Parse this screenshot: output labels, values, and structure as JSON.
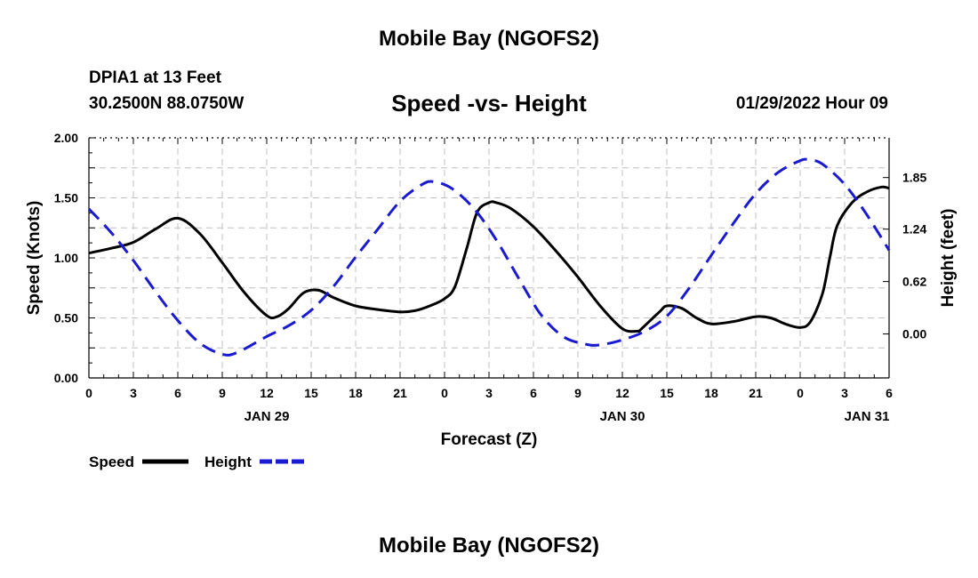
{
  "header": {
    "title": "Mobile Bay (NGOFS2)",
    "station": "DPIA1 at 13 Feet",
    "coordinates": "30.2500N  88.0750W",
    "chart_title": "Speed -vs- Height",
    "datetime": "01/29/2022 Hour 09"
  },
  "footer": {
    "title": "Mobile Bay (NGOFS2)"
  },
  "legend": {
    "speed_label": "Speed",
    "height_label": "Height",
    "speed_color": "#000000",
    "height_color": "#1a1ad0"
  },
  "chart_data": {
    "type": "line",
    "title": "Speed -vs- Height",
    "xlabel": "Forecast (Z)",
    "ylabel": "Speed (Knots)",
    "y2label": "Height (feet)",
    "xlim": [
      0,
      54
    ],
    "ylim": [
      0,
      2.0
    ],
    "y2lim": [
      -0.52,
      2.32
    ],
    "x_ticks": [
      0,
      3,
      6,
      9,
      12,
      15,
      18,
      21,
      24,
      27,
      30,
      33,
      36,
      39,
      42,
      45,
      48,
      51,
      54
    ],
    "x_tick_labels": [
      "0",
      "3",
      "6",
      "9",
      "12",
      "15",
      "18",
      "21",
      "0",
      "3",
      "6",
      "9",
      "12",
      "15",
      "18",
      "21",
      "0",
      "3",
      "6"
    ],
    "date_labels": [
      {
        "x": 12,
        "label": "JAN 29"
      },
      {
        "x": 36,
        "label": "JAN 30"
      },
      {
        "x": 52.5,
        "label": "JAN 31"
      }
    ],
    "y_ticks": [
      0.0,
      0.5,
      1.0,
      1.5,
      2.0
    ],
    "y_tick_labels": [
      "0.00",
      "0.50",
      "1.00",
      "1.50",
      "2.00"
    ],
    "y2_ticks": [
      0.0,
      0.62,
      1.24,
      1.85
    ],
    "y2_tick_labels": [
      "0.00",
      "0.62",
      "1.24",
      "1.85"
    ],
    "grid": true,
    "legend_position": "bottom-left",
    "series": [
      {
        "name": "Speed",
        "axis": "left",
        "style": "solid",
        "color": "#000000",
        "x": [
          0,
          1.5,
          3,
          4.5,
          6,
          7.5,
          9,
          10.5,
          12,
          12.7,
          13.5,
          14.5,
          15.5,
          16.5,
          18,
          19.5,
          21,
          22,
          23,
          24,
          24.7,
          25.5,
          26.2,
          27,
          27.5,
          28.5,
          30,
          31.5,
          33,
          34.5,
          36,
          37,
          37.3,
          38.5,
          39,
          40,
          41,
          42,
          43.5,
          45,
          46,
          47,
          48,
          48.7,
          49.5,
          50,
          50.5,
          51.5,
          52.5,
          53.5,
          54
        ],
        "values": [
          1.04,
          1.08,
          1.13,
          1.24,
          1.33,
          1.2,
          0.96,
          0.71,
          0.52,
          0.51,
          0.58,
          0.71,
          0.73,
          0.67,
          0.6,
          0.57,
          0.55,
          0.56,
          0.6,
          0.66,
          0.76,
          1.08,
          1.38,
          1.46,
          1.46,
          1.41,
          1.26,
          1.06,
          0.84,
          0.6,
          0.41,
          0.39,
          0.41,
          0.55,
          0.6,
          0.58,
          0.5,
          0.45,
          0.47,
          0.51,
          0.5,
          0.45,
          0.42,
          0.47,
          0.7,
          1.0,
          1.27,
          1.46,
          1.55,
          1.59,
          1.58
        ]
      },
      {
        "name": "Height",
        "axis": "right",
        "style": "dashed",
        "color": "#1a1ad0",
        "x": [
          0,
          1.5,
          3,
          4.5,
          6,
          7.5,
          9,
          10,
          12,
          13.5,
          15,
          16.5,
          18,
          19.5,
          21,
          22.5,
          23.3,
          24.5,
          26,
          27.5,
          29,
          30.5,
          32,
          33.5,
          34.5,
          36,
          37.5,
          39,
          40.5,
          42,
          43.5,
          45,
          46.5,
          48,
          48.6,
          49.5,
          51,
          52.5,
          54
        ],
        "values": [
          1.48,
          1.2,
          0.87,
          0.5,
          0.16,
          -0.11,
          -0.24,
          -0.22,
          -0.03,
          0.1,
          0.28,
          0.56,
          0.91,
          1.24,
          1.57,
          1.77,
          1.8,
          1.72,
          1.48,
          1.11,
          0.66,
          0.23,
          -0.03,
          -0.12,
          -0.13,
          -0.07,
          0.03,
          0.21,
          0.54,
          0.93,
          1.31,
          1.66,
          1.91,
          2.05,
          2.06,
          2.01,
          1.77,
          1.41,
          0.99
        ]
      }
    ]
  }
}
